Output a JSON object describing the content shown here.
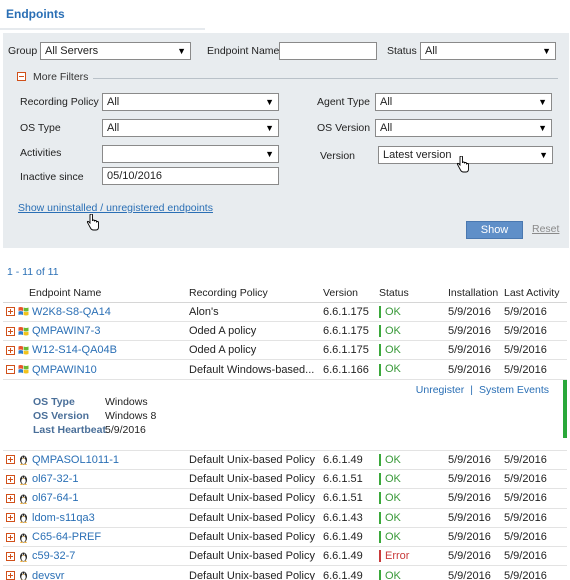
{
  "page": {
    "title": "Endpoints"
  },
  "filters": {
    "group_label": "Group",
    "group_value": "All Servers",
    "endpoint_name_label": "Endpoint Name",
    "endpoint_name_value": "",
    "status_label": "Status",
    "status_value": "All",
    "more_filters_label": "More Filters",
    "recording_policy_label": "Recording Policy",
    "recording_policy_value": "All",
    "agent_type_label": "Agent Type",
    "agent_type_value": "All",
    "os_type_label": "OS Type",
    "os_type_value": "All",
    "os_version_label": "OS Version",
    "os_version_value": "All",
    "activities_label": "Activities",
    "activities_value": "",
    "version_label": "Version",
    "version_value": "Latest version",
    "inactive_since_label": "Inactive since",
    "inactive_since_value": "05/10/2016",
    "show_uninstalled_link": "Show uninstalled / unregistered endpoints",
    "show_button": "Show",
    "reset_link": "Reset"
  },
  "results": {
    "count_text": "1 - 11 of 11",
    "columns": [
      "Endpoint Name",
      "Recording Policy",
      "Version",
      "Status",
      "Installation",
      "Last Activity"
    ],
    "rows": [
      {
        "name": "W2K8-S8-QA14",
        "os": "windows",
        "policy": "Alon's",
        "version": "6.6.1.175",
        "status": "OK",
        "installation": "5/9/2016",
        "last_activity": "5/9/2016"
      },
      {
        "name": "QMPAWIN7-3",
        "os": "windows",
        "policy": "Oded A policy",
        "version": "6.6.1.175",
        "status": "OK",
        "installation": "5/9/2016",
        "last_activity": "5/9/2016"
      },
      {
        "name": "W12-S14-QA04B",
        "os": "windows",
        "policy": "Oded A policy",
        "version": "6.6.1.175",
        "status": "OK",
        "installation": "5/9/2016",
        "last_activity": "5/9/2016"
      },
      {
        "name": "QMPAWIN10",
        "os": "windows",
        "policy": "Default Windows-based...",
        "version": "6.6.1.166",
        "status": "OK",
        "installation": "5/9/2016",
        "last_activity": "5/9/2016",
        "expanded": true
      },
      {
        "name": "QMPASOL1011-1",
        "os": "unix",
        "policy": "Default Unix-based Policy",
        "version": "6.6.1.49",
        "status": "OK",
        "installation": "5/9/2016",
        "last_activity": "5/9/2016"
      },
      {
        "name": "ol67-32-1",
        "os": "unix",
        "policy": "Default Unix-based Policy",
        "version": "6.6.1.51",
        "status": "OK",
        "installation": "5/9/2016",
        "last_activity": "5/9/2016"
      },
      {
        "name": "ol67-64-1",
        "os": "unix",
        "policy": "Default Unix-based Policy",
        "version": "6.6.1.51",
        "status": "OK",
        "installation": "5/9/2016",
        "last_activity": "5/9/2016"
      },
      {
        "name": "ldom-s11qa3",
        "os": "unix",
        "policy": "Default Unix-based Policy",
        "version": "6.6.1.43",
        "status": "OK",
        "installation": "5/9/2016",
        "last_activity": "5/9/2016"
      },
      {
        "name": "C65-64-PREF",
        "os": "unix",
        "policy": "Default Unix-based Policy",
        "version": "6.6.1.49",
        "status": "OK",
        "installation": "5/9/2016",
        "last_activity": "5/9/2016"
      },
      {
        "name": "c59-32-7",
        "os": "unix",
        "policy": "Default Unix-based Policy",
        "version": "6.6.1.49",
        "status": "Error",
        "installation": "5/9/2016",
        "last_activity": "5/9/2016"
      },
      {
        "name": "devsvr",
        "os": "unix",
        "policy": "Default Unix-based Policy",
        "version": "6.6.1.49",
        "status": "OK",
        "installation": "5/9/2016",
        "last_activity": "5/9/2016"
      }
    ],
    "details": {
      "unregister_link": "Unregister",
      "separator": "|",
      "system_events_link": "System Events",
      "os_type_key": "OS Type",
      "os_type_value": "Windows",
      "os_version_key": "OS Version",
      "os_version_value": "Windows 8",
      "last_heartbeat_key": "Last Heartbeat",
      "last_heartbeat_value": "5/9/2016"
    }
  },
  "icons": {
    "windows": "windows-flag-icon",
    "unix": "linux-penguin-icon",
    "expand": "expand-plus-icon",
    "collapse": "collapse-minus-icon",
    "dropdown": "chevron-down-icon",
    "cursor": "hand-pointer-icon"
  },
  "colors": {
    "link": "#2a6fb5",
    "ok": "#3aa83a",
    "error": "#c83a3a",
    "show_button": "#5f8fc8",
    "panel": "#e8ecef"
  }
}
